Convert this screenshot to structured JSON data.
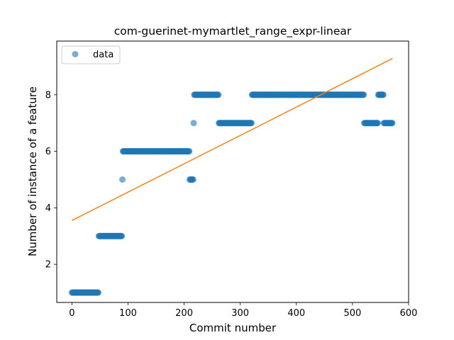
{
  "chart_data": {
    "type": "scatter",
    "title": "com-guerinet-mymartlet_range_expr-linear",
    "xlabel": "Commit number",
    "ylabel": "Number of instance of a feature",
    "xlim": [
      -27,
      600
    ],
    "ylim": [
      0.65,
      9.9
    ],
    "xticks": [
      0,
      100,
      200,
      300,
      400,
      500,
      600
    ],
    "yticks": [
      2,
      4,
      6,
      8
    ],
    "grid": false,
    "legend": {
      "entries": [
        "data"
      ],
      "placement": "top-left"
    },
    "colors": {
      "data": "#1f77b4",
      "fit": "#ff7f0e"
    },
    "series": [
      {
        "name": "data",
        "kind": "scatter",
        "segments": [
          {
            "x_start": 0,
            "x_end": 47,
            "y": 1
          },
          {
            "x_start": 48,
            "x_end": 89,
            "y": 3
          },
          {
            "x_start": 90,
            "x_end": 90,
            "y": 5
          },
          {
            "x_start": 91,
            "x_end": 209,
            "y": 6
          },
          {
            "x_start": 210,
            "x_end": 216,
            "y": 5
          },
          {
            "x_start": 217,
            "x_end": 217,
            "y": 7
          },
          {
            "x_start": 218,
            "x_end": 261,
            "y": 8
          },
          {
            "x_start": 262,
            "x_end": 320,
            "y": 7
          },
          {
            "x_start": 321,
            "x_end": 520,
            "y": 8
          },
          {
            "x_start": 521,
            "x_end": 545,
            "y": 7
          },
          {
            "x_start": 546,
            "x_end": 555,
            "y": 8
          },
          {
            "x_start": 556,
            "x_end": 571,
            "y": 7
          }
        ]
      },
      {
        "name": "linear fit",
        "kind": "line",
        "x": [
          0,
          571
        ],
        "y": [
          3.55,
          9.28
        ]
      }
    ]
  }
}
